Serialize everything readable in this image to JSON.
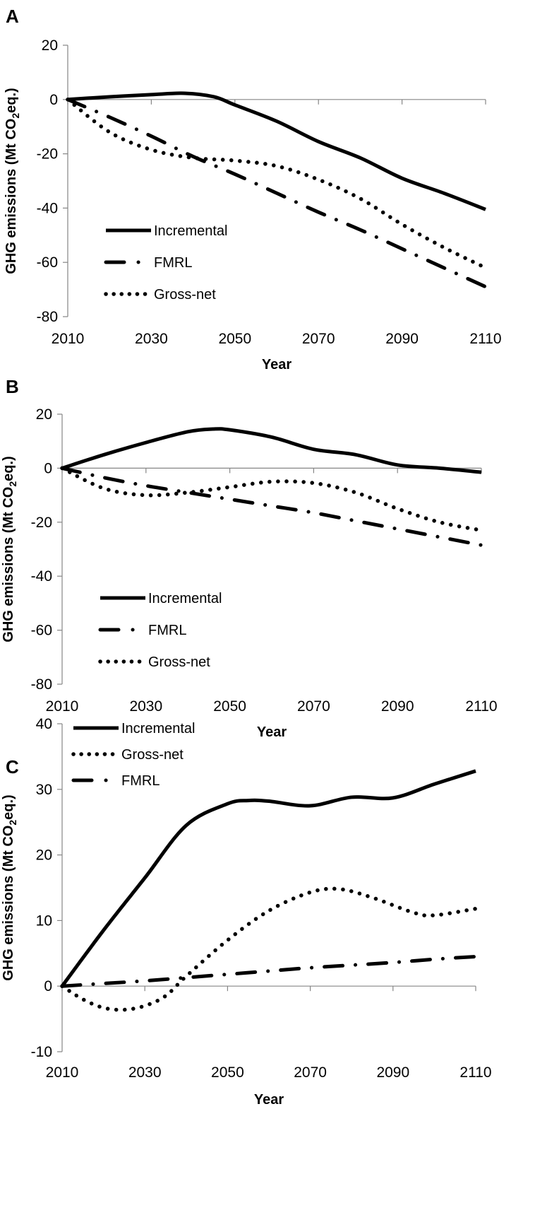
{
  "chart_data": [
    {
      "type": "line",
      "panel": "A",
      "xlabel": "Year",
      "ylabel_main": "GHG emissions (Mt CO",
      "ylabel_sub": "2",
      "ylabel_tail": "eq.)",
      "xlim": [
        2010,
        2110
      ],
      "ylim": [
        -80,
        20
      ],
      "xticks": [
        2010,
        2030,
        2050,
        2070,
        2090,
        2110
      ],
      "yticks": [
        20,
        0,
        -20,
        -40,
        -60,
        -80
      ],
      "grid": false,
      "legend_position": "bottom-left",
      "series": [
        {
          "name": "Incremental",
          "style": "solid",
          "x": [
            2010,
            2020,
            2030,
            2038,
            2045,
            2050,
            2060,
            2070,
            2080,
            2090,
            2100,
            2110
          ],
          "y": [
            0,
            1,
            1.8,
            2.3,
            1,
            -2,
            -8,
            -15.5,
            -21.5,
            -29,
            -34.5,
            -40.5
          ]
        },
        {
          "name": "FMRL",
          "style": "dashdot",
          "x": [
            2010,
            2020,
            2030,
            2040,
            2050,
            2060,
            2070,
            2080,
            2090,
            2100,
            2110
          ],
          "y": [
            0,
            -6.5,
            -13.5,
            -21,
            -27.5,
            -34.5,
            -41.5,
            -48,
            -55,
            -62,
            -69
          ]
        },
        {
          "name": "Gross-net",
          "style": "dotted",
          "x": [
            2010,
            2020,
            2030,
            2040,
            2050,
            2060,
            2070,
            2080,
            2090,
            2100,
            2110
          ],
          "y": [
            0,
            -12,
            -18.5,
            -21.5,
            -22.5,
            -24.5,
            -29.5,
            -36.5,
            -46,
            -54.5,
            -62
          ]
        }
      ]
    },
    {
      "type": "line",
      "panel": "B",
      "xlabel": "Year",
      "ylabel_main": "GHG emissions (Mt CO",
      "ylabel_sub": "2",
      "ylabel_tail": "eq.)",
      "xlim": [
        2010,
        2110
      ],
      "ylim": [
        -80,
        20
      ],
      "xticks": [
        2010,
        2030,
        2050,
        2070,
        2090,
        2110
      ],
      "yticks": [
        20,
        0,
        -20,
        -40,
        -60,
        -80
      ],
      "grid": false,
      "legend_position": "bottom-left",
      "series": [
        {
          "name": "Incremental",
          "style": "solid",
          "x": [
            2010,
            2020,
            2030,
            2040,
            2046,
            2050,
            2060,
            2070,
            2080,
            2090,
            2100,
            2110
          ],
          "y": [
            0,
            5,
            9.5,
            13.5,
            14.5,
            14.2,
            11.5,
            7,
            5,
            1.2,
            0,
            -1.5
          ]
        },
        {
          "name": "FMRL",
          "style": "dashdot",
          "x": [
            2010,
            2020,
            2030,
            2040,
            2050,
            2060,
            2070,
            2080,
            2090,
            2100,
            2110
          ],
          "y": [
            0,
            -3.5,
            -6.5,
            -9,
            -11.5,
            -14,
            -16.5,
            -19.5,
            -22.5,
            -25.5,
            -28.5
          ]
        },
        {
          "name": "Gross-net",
          "style": "dotted",
          "x": [
            2010,
            2020,
            2030,
            2040,
            2050,
            2060,
            2070,
            2080,
            2090,
            2100,
            2110
          ],
          "y": [
            0,
            -7.5,
            -10,
            -9,
            -7,
            -5,
            -5.5,
            -9,
            -15,
            -20,
            -23
          ]
        }
      ]
    },
    {
      "type": "line",
      "panel": "C",
      "xlabel": "Year",
      "ylabel_main": "GHG emissions (Mt CO",
      "ylabel_sub": "2",
      "ylabel_tail": "eq.)",
      "xlim": [
        2010,
        2110
      ],
      "ylim": [
        -10,
        40
      ],
      "xticks": [
        2010,
        2030,
        2050,
        2070,
        2090,
        2110
      ],
      "yticks": [
        40,
        30,
        20,
        10,
        0,
        -10
      ],
      "grid": false,
      "legend_position": "top-left",
      "series": [
        {
          "name": "Incremental",
          "style": "solid",
          "x": [
            2010,
            2020,
            2030,
            2040,
            2050,
            2055,
            2060,
            2070,
            2080,
            2090,
            2100,
            2110
          ],
          "y": [
            0,
            8.5,
            16.5,
            24.5,
            27.8,
            28.3,
            28.2,
            27.5,
            28.8,
            28.7,
            30.8,
            32.8
          ]
        },
        {
          "name": "Gross-net",
          "style": "dotted",
          "x": [
            2010,
            2015,
            2020,
            2025,
            2030,
            2035,
            2040,
            2050,
            2060,
            2070,
            2077,
            2085,
            2095,
            2100,
            2110
          ],
          "y": [
            0,
            -2,
            -3.3,
            -3.6,
            -3,
            -1.5,
            1.5,
            7,
            11.5,
            14.3,
            14.8,
            13.5,
            11.2,
            10.8,
            11.8
          ]
        },
        {
          "name": "FMRL",
          "style": "dashdot",
          "x": [
            2010,
            2020,
            2030,
            2040,
            2050,
            2060,
            2070,
            2080,
            2090,
            2100,
            2110
          ],
          "y": [
            0,
            0.4,
            0.8,
            1.3,
            1.8,
            2.3,
            2.8,
            3.2,
            3.6,
            4.1,
            4.5
          ]
        }
      ]
    }
  ]
}
